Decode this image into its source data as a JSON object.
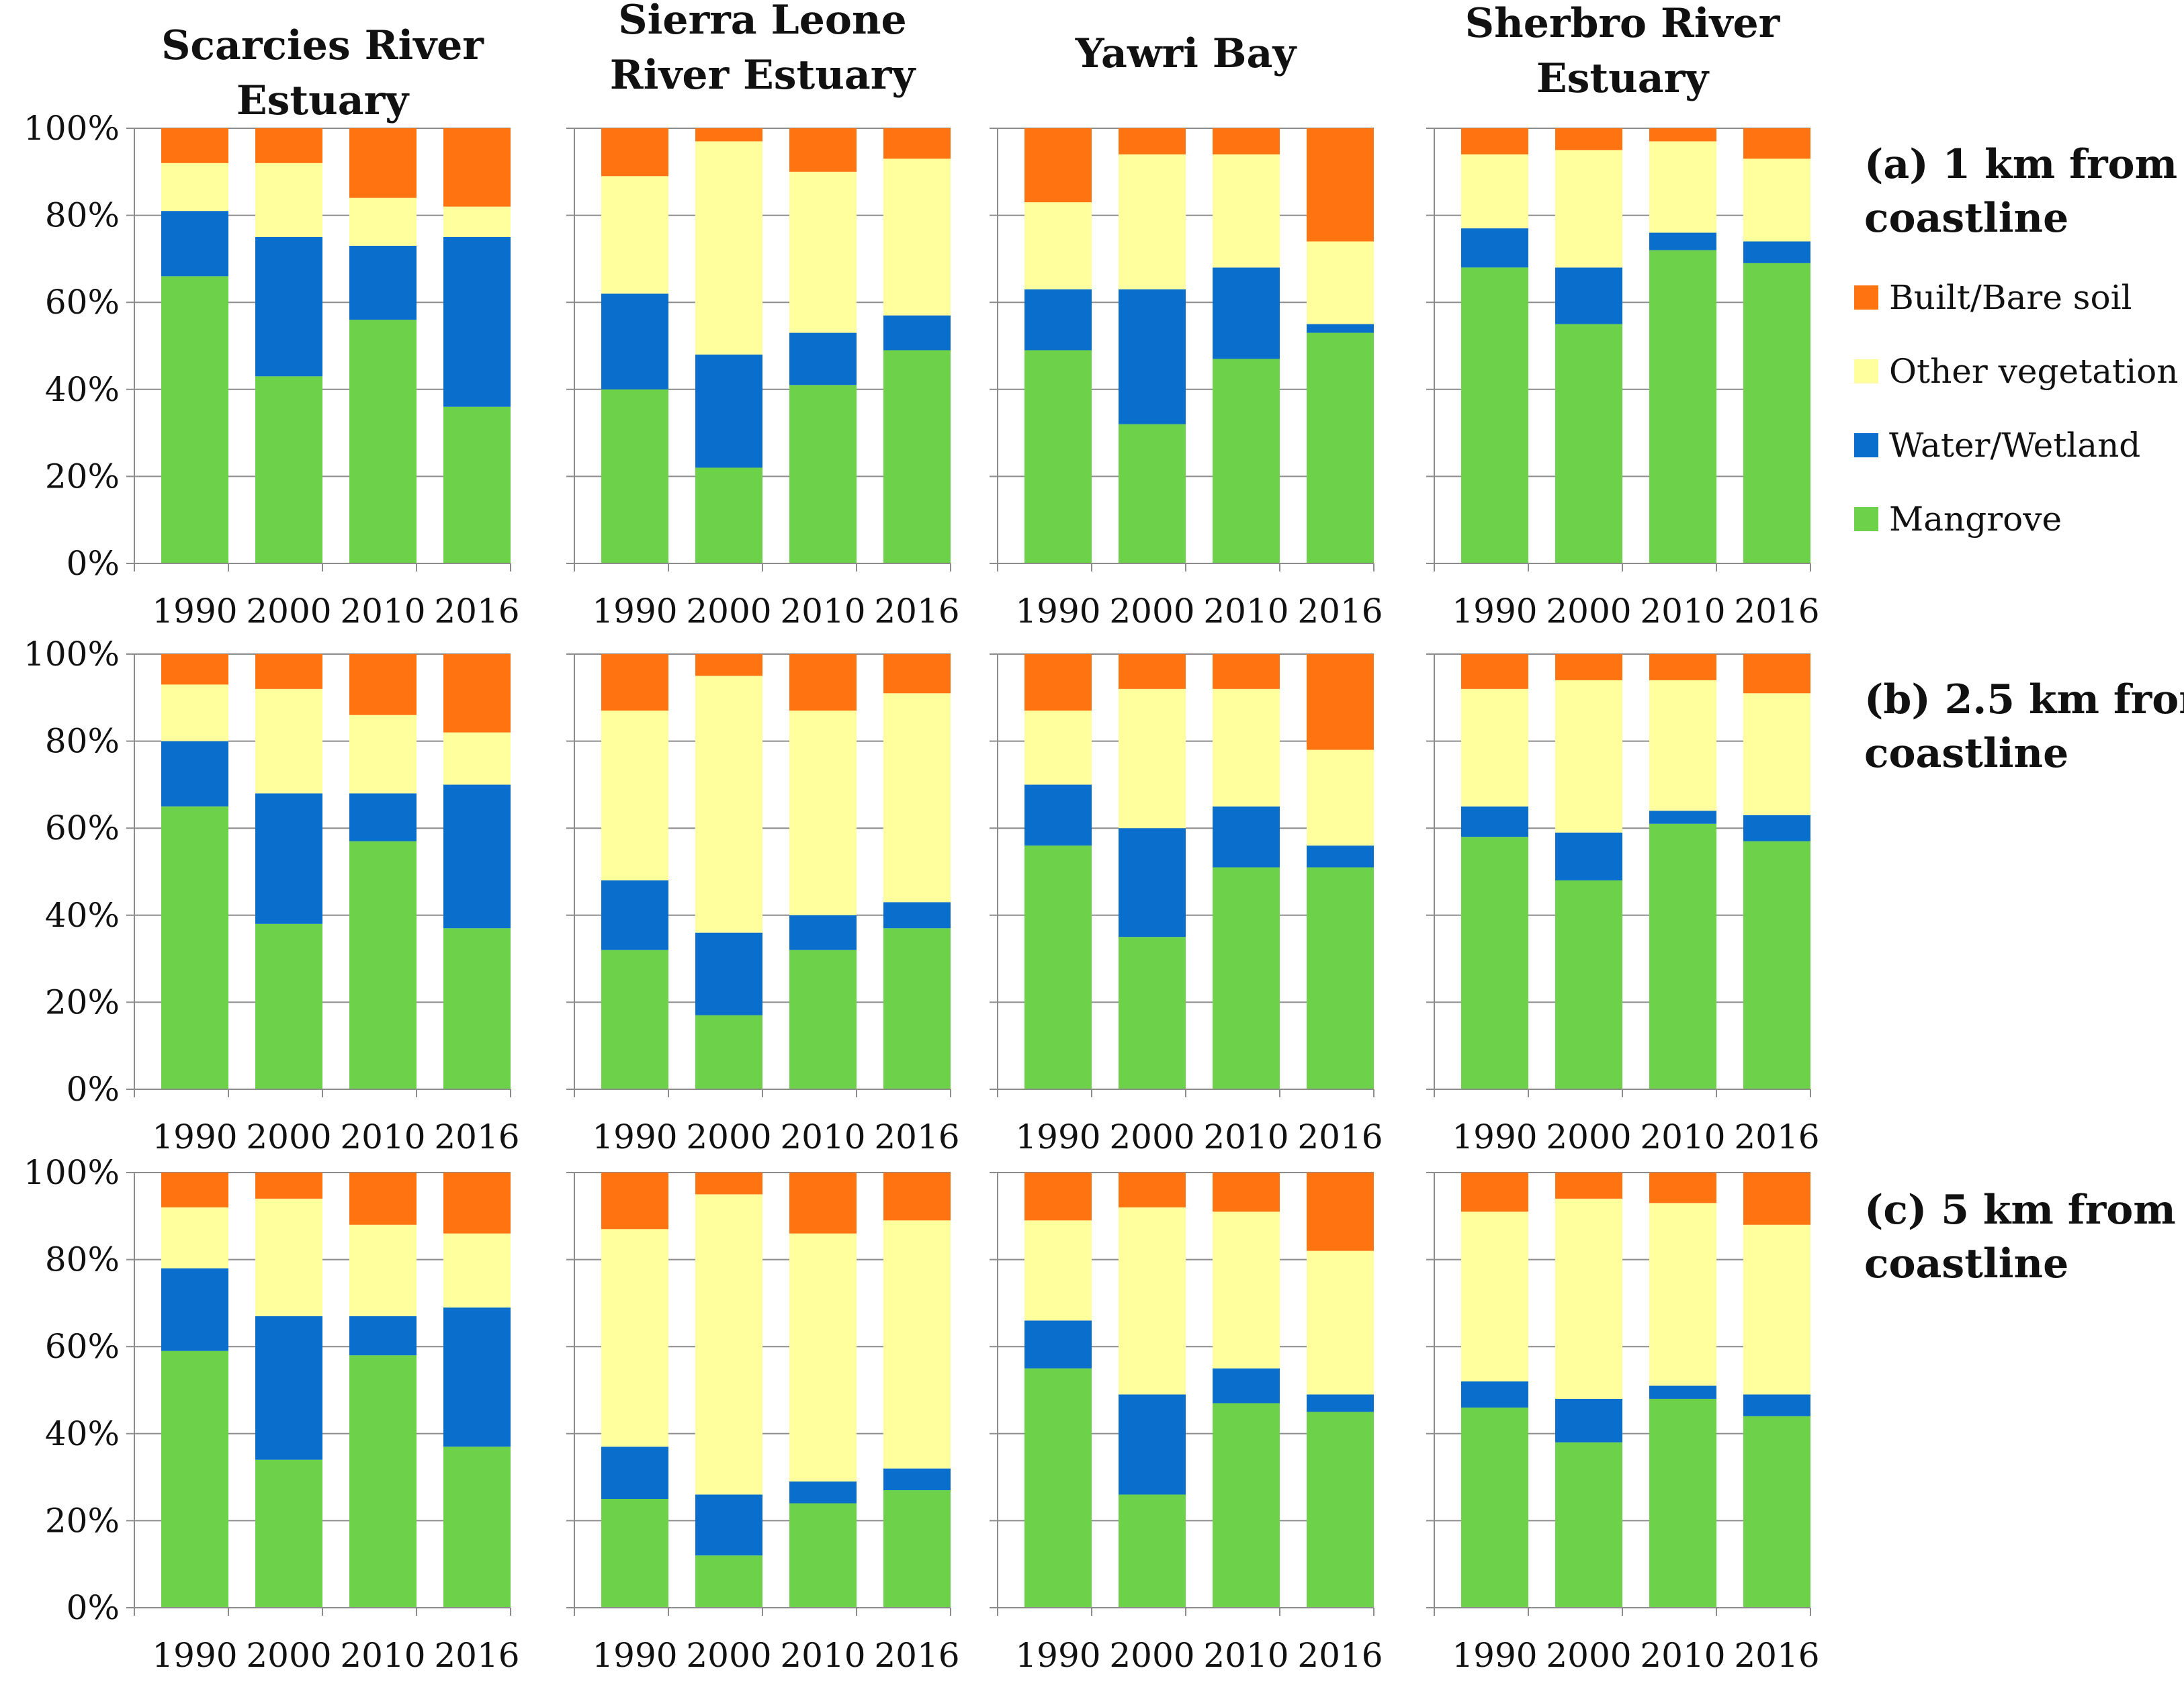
{
  "chart_data": {
    "type": "bar",
    "stacked": true,
    "percent": true,
    "title": "",
    "xlabel": "",
    "ylabel": "",
    "ylim": [
      0,
      100
    ],
    "ytick_labels": [
      "0%",
      "20%",
      "40%",
      "60%",
      "80%",
      "100%"
    ],
    "categories": [
      "1990",
      "2000",
      "2010",
      "2016"
    ],
    "legend": [
      {
        "name": "Built/Bare soil",
        "color": "#ff7410"
      },
      {
        "name": "Other vegetation",
        "color": "#ffff9e"
      },
      {
        "name": "Water/Wetland",
        "color": "#0a6ecc"
      },
      {
        "name": "Mangrove",
        "color": "#6dd24a"
      }
    ],
    "series_order_bottom_to_top": [
      "Mangrove",
      "Water/Wetland",
      "Other vegetation",
      "Built/Bare soil"
    ],
    "columns": [
      {
        "title_lines": [
          "Scarcies River",
          "Estuary"
        ]
      },
      {
        "title_lines": [
          "Sierra Leone",
          "River Estuary"
        ]
      },
      {
        "title_lines": [
          "Yawri Bay"
        ]
      },
      {
        "title_lines": [
          "Sherbro River",
          "Estuary"
        ]
      }
    ],
    "rows": [
      {
        "label_lines": [
          "(a) 1 km from",
          "coastline"
        ]
      },
      {
        "label_lines": [
          "(b) 2.5 km from",
          "coastline"
        ]
      },
      {
        "label_lines": [
          "(c) 5 km from",
          "coastline"
        ]
      }
    ],
    "panels": [
      {
        "row": 0,
        "col": 0,
        "series": [
          {
            "name": "Mangrove",
            "values": [
              66,
              43,
              56,
              36
            ]
          },
          {
            "name": "Water/Wetland",
            "values": [
              15,
              32,
              17,
              39
            ]
          },
          {
            "name": "Other vegetation",
            "values": [
              11,
              17,
              11,
              7
            ]
          },
          {
            "name": "Built/Bare soil",
            "values": [
              8,
              8,
              16,
              18
            ]
          }
        ]
      },
      {
        "row": 0,
        "col": 1,
        "series": [
          {
            "name": "Mangrove",
            "values": [
              40,
              22,
              41,
              49
            ]
          },
          {
            "name": "Water/Wetland",
            "values": [
              22,
              26,
              12,
              8
            ]
          },
          {
            "name": "Other vegetation",
            "values": [
              27,
              49,
              37,
              36
            ]
          },
          {
            "name": "Built/Bare soil",
            "values": [
              11,
              3,
              10,
              7
            ]
          }
        ]
      },
      {
        "row": 0,
        "col": 2,
        "series": [
          {
            "name": "Mangrove",
            "values": [
              49,
              32,
              47,
              53
            ]
          },
          {
            "name": "Water/Wetland",
            "values": [
              14,
              31,
              21,
              2
            ]
          },
          {
            "name": "Other vegetation",
            "values": [
              20,
              31,
              26,
              19
            ]
          },
          {
            "name": "Built/Bare soil",
            "values": [
              17,
              6,
              6,
              26
            ]
          }
        ]
      },
      {
        "row": 0,
        "col": 3,
        "series": [
          {
            "name": "Mangrove",
            "values": [
              68,
              55,
              72,
              69
            ]
          },
          {
            "name": "Water/Wetland",
            "values": [
              9,
              13,
              4,
              5
            ]
          },
          {
            "name": "Other vegetation",
            "values": [
              17,
              27,
              21,
              19
            ]
          },
          {
            "name": "Built/Bare soil",
            "values": [
              6,
              5,
              3,
              7
            ]
          }
        ]
      },
      {
        "row": 1,
        "col": 0,
        "series": [
          {
            "name": "Mangrove",
            "values": [
              65,
              38,
              57,
              37
            ]
          },
          {
            "name": "Water/Wetland",
            "values": [
              15,
              30,
              11,
              33
            ]
          },
          {
            "name": "Other vegetation",
            "values": [
              13,
              24,
              18,
              12
            ]
          },
          {
            "name": "Built/Bare soil",
            "values": [
              7,
              8,
              14,
              18
            ]
          }
        ]
      },
      {
        "row": 1,
        "col": 1,
        "series": [
          {
            "name": "Mangrove",
            "values": [
              32,
              17,
              32,
              37
            ]
          },
          {
            "name": "Water/Wetland",
            "values": [
              16,
              19,
              8,
              6
            ]
          },
          {
            "name": "Other vegetation",
            "values": [
              39,
              59,
              47,
              48
            ]
          },
          {
            "name": "Built/Bare soil",
            "values": [
              13,
              5,
              13,
              9
            ]
          }
        ]
      },
      {
        "row": 1,
        "col": 2,
        "series": [
          {
            "name": "Mangrove",
            "values": [
              56,
              35,
              51,
              51
            ]
          },
          {
            "name": "Water/Wetland",
            "values": [
              14,
              25,
              14,
              5
            ]
          },
          {
            "name": "Other vegetation",
            "values": [
              17,
              32,
              27,
              22
            ]
          },
          {
            "name": "Built/Bare soil",
            "values": [
              13,
              8,
              8,
              22
            ]
          }
        ]
      },
      {
        "row": 1,
        "col": 3,
        "series": [
          {
            "name": "Mangrove",
            "values": [
              58,
              48,
              61,
              57
            ]
          },
          {
            "name": "Water/Wetland",
            "values": [
              7,
              11,
              3,
              6
            ]
          },
          {
            "name": "Other vegetation",
            "values": [
              27,
              35,
              30,
              28
            ]
          },
          {
            "name": "Built/Bare soil",
            "values": [
              8,
              6,
              6,
              9
            ]
          }
        ]
      },
      {
        "row": 2,
        "col": 0,
        "series": [
          {
            "name": "Mangrove",
            "values": [
              59,
              34,
              58,
              37
            ]
          },
          {
            "name": "Water/Wetland",
            "values": [
              19,
              33,
              9,
              32
            ]
          },
          {
            "name": "Other vegetation",
            "values": [
              14,
              27,
              21,
              17
            ]
          },
          {
            "name": "Built/Bare soil",
            "values": [
              8,
              6,
              12,
              14
            ]
          }
        ]
      },
      {
        "row": 2,
        "col": 1,
        "series": [
          {
            "name": "Mangrove",
            "values": [
              25,
              12,
              24,
              27
            ]
          },
          {
            "name": "Water/Wetland",
            "values": [
              12,
              14,
              5,
              5
            ]
          },
          {
            "name": "Other vegetation",
            "values": [
              50,
              69,
              57,
              57
            ]
          },
          {
            "name": "Built/Bare soil",
            "values": [
              13,
              5,
              14,
              11
            ]
          }
        ]
      },
      {
        "row": 2,
        "col": 2,
        "series": [
          {
            "name": "Mangrove",
            "values": [
              55,
              26,
              47,
              45
            ]
          },
          {
            "name": "Water/Wetland",
            "values": [
              11,
              23,
              8,
              4
            ]
          },
          {
            "name": "Other vegetation",
            "values": [
              23,
              43,
              36,
              33
            ]
          },
          {
            "name": "Built/Bare soil",
            "values": [
              11,
              8,
              9,
              18
            ]
          }
        ]
      },
      {
        "row": 2,
        "col": 3,
        "series": [
          {
            "name": "Mangrove",
            "values": [
              46,
              38,
              48,
              44
            ]
          },
          {
            "name": "Water/Wetland",
            "values": [
              6,
              10,
              3,
              5
            ]
          },
          {
            "name": "Other vegetation",
            "values": [
              39,
              46,
              42,
              39
            ]
          },
          {
            "name": "Built/Bare soil",
            "values": [
              9,
              6,
              7,
              12
            ]
          }
        ]
      }
    ]
  }
}
